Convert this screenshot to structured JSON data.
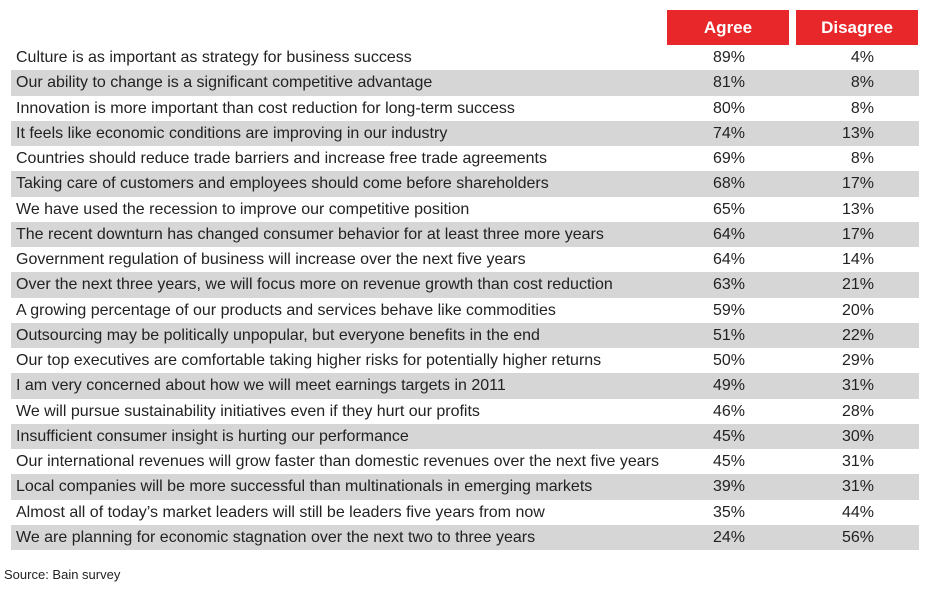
{
  "chart_data": {
    "type": "table",
    "columns": [
      "Agree",
      "Disagree"
    ],
    "header_color": "#e8272a",
    "row_shade_color": "#d6d6d6",
    "rows": [
      {
        "statement": "Culture is as important as strategy for business success",
        "agree": "89%",
        "disagree": "4%"
      },
      {
        "statement": "Our ability to change is a significant competitive advantage",
        "agree": "81%",
        "disagree": "8%"
      },
      {
        "statement": "Innovation is more important than cost reduction for long-term success",
        "agree": "80%",
        "disagree": "8%"
      },
      {
        "statement": "It feels like economic conditions are improving in our industry",
        "agree": "74%",
        "disagree": "13%"
      },
      {
        "statement": "Countries should reduce trade barriers and increase free trade agreements",
        "agree": "69%",
        "disagree": "8%"
      },
      {
        "statement": "Taking care of customers and employees should come before shareholders",
        "agree": "68%",
        "disagree": "17%"
      },
      {
        "statement": "We have used the recession to improve our competitive position",
        "agree": "65%",
        "disagree": "13%"
      },
      {
        "statement": "The recent downturn has changed consumer behavior for at least three more years",
        "agree": "64%",
        "disagree": "17%"
      },
      {
        "statement": "Government regulation of business will increase over the next five years",
        "agree": "64%",
        "disagree": "14%"
      },
      {
        "statement": "Over the next three years, we will focus more on revenue growth than cost reduction",
        "agree": "63%",
        "disagree": "21%"
      },
      {
        "statement": "A growing percentage of our products and services behave like commodities",
        "agree": "59%",
        "disagree": "20%"
      },
      {
        "statement": "Outsourcing may be politically unpopular, but everyone benefits in the end",
        "agree": "51%",
        "disagree": "22%"
      },
      {
        "statement": "Our top executives are comfortable taking higher risks for potentially higher returns",
        "agree": "50%",
        "disagree": "29%"
      },
      {
        "statement": "I am very concerned about how we will meet earnings targets in 2011",
        "agree": "49%",
        "disagree": "31%"
      },
      {
        "statement": "We will pursue sustainability initiatives even if they hurt our profits",
        "agree": "46%",
        "disagree": "28%"
      },
      {
        "statement": "Insufficient consumer insight is hurting our performance",
        "agree": "45%",
        "disagree": "30%"
      },
      {
        "statement": "Our international revenues will grow faster than domestic revenues over the next five years",
        "agree": "45%",
        "disagree": "31%"
      },
      {
        "statement": "Local companies will be more successful than multinationals in emerging markets",
        "agree": "39%",
        "disagree": "31%"
      },
      {
        "statement": "Almost all of today’s market leaders will still be leaders five years from now",
        "agree": "35%",
        "disagree": "44%"
      },
      {
        "statement": "We are planning for economic stagnation over the next two to three years",
        "agree": "24%",
        "disagree": "56%"
      }
    ]
  },
  "source": "Source: Bain survey"
}
